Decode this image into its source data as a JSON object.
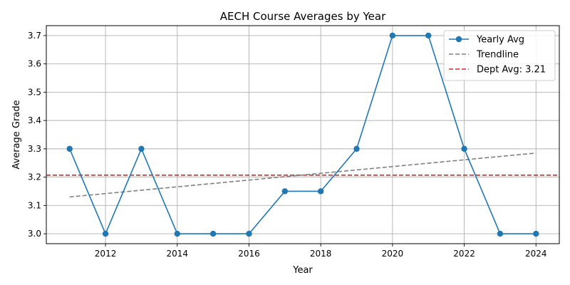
{
  "chart_data": {
    "type": "line",
    "title": "AECH Course Averages by Year",
    "xlabel": "Year",
    "ylabel": "Average Grade",
    "xlim": [
      2010.35,
      2024.65
    ],
    "ylim": [
      2.965,
      3.735
    ],
    "x_ticks": [
      2012,
      2014,
      2016,
      2018,
      2020,
      2022,
      2024
    ],
    "y_ticks": [
      3.0,
      3.1,
      3.2,
      3.3,
      3.4,
      3.5,
      3.6,
      3.7
    ],
    "grid": true,
    "legend_position": "top-right",
    "series": [
      {
        "name": "Yearly Avg",
        "color": "#1f77b4",
        "style": "solid",
        "marker": "circle",
        "x": [
          2011,
          2012,
          2013,
          2014,
          2015,
          2016,
          2017,
          2018,
          2019,
          2020,
          2021,
          2022,
          2023,
          2024
        ],
        "y": [
          3.3,
          3.0,
          3.3,
          3.0,
          3.0,
          3.0,
          3.15,
          3.15,
          3.3,
          3.7,
          3.7,
          3.3,
          3.0,
          3.0
        ]
      },
      {
        "name": "Trendline",
        "color": "#808080",
        "style": "dashed",
        "x": [
          2011,
          2024
        ],
        "y": [
          3.13,
          3.285
        ]
      }
    ],
    "reference_lines": [
      {
        "name": "Dept Avg: 3.21",
        "color": "#d62728",
        "style": "dashed",
        "y": 3.207
      }
    ]
  }
}
